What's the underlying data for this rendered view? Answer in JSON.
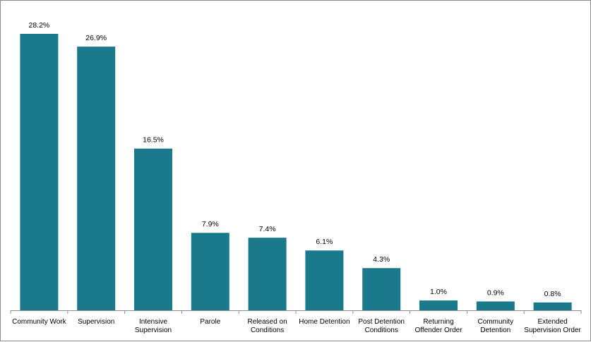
{
  "chart_data": {
    "type": "bar",
    "title": "",
    "xlabel": "",
    "ylabel": "",
    "bar_color": "#1a7a8c",
    "axis_color": "#8c8c8c",
    "ylim": [
      0,
      30
    ],
    "categories": [
      [
        "Community Work"
      ],
      [
        "Supervision"
      ],
      [
        "Intensive",
        "Supervision"
      ],
      [
        "Parole"
      ],
      [
        "Released on",
        "Conditions"
      ],
      [
        "Home Detention"
      ],
      [
        "Post Detention",
        "Conditions"
      ],
      [
        "Returning",
        "Offender Order"
      ],
      [
        "Community",
        "Detention"
      ],
      [
        "Extended",
        "Supervision Order"
      ]
    ],
    "values": [
      28.2,
      26.9,
      16.5,
      7.9,
      7.4,
      6.1,
      4.3,
      1.0,
      0.9,
      0.8
    ],
    "value_labels": [
      "28.2%",
      "26.9%",
      "16.5%",
      "7.9%",
      "7.4%",
      "6.1%",
      "4.3%",
      "1.0%",
      "0.9%",
      "0.8%"
    ]
  }
}
